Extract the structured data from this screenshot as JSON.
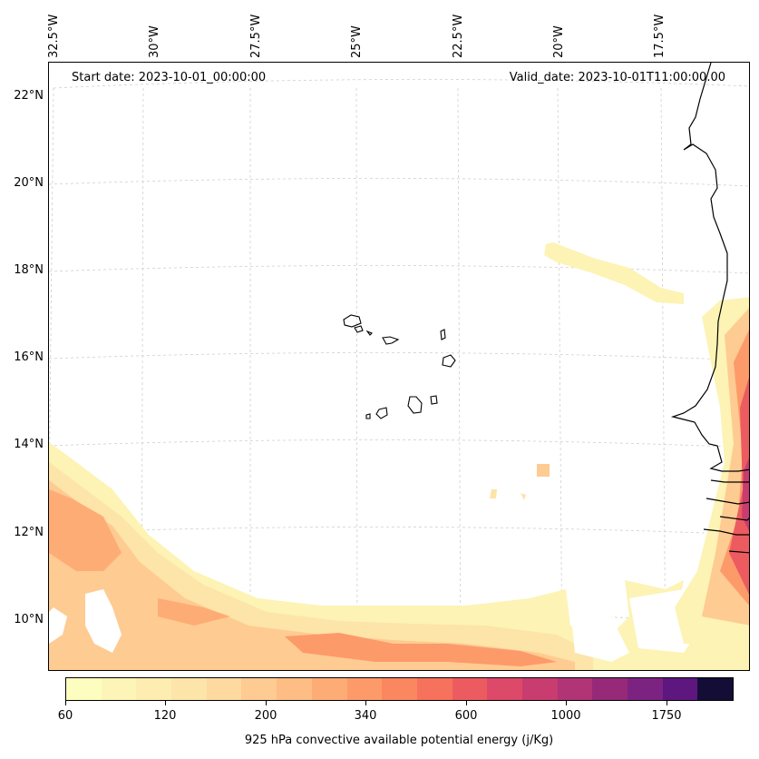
{
  "map": {
    "start_date_text": "Start date: 2023-10-01_00:00:00",
    "valid_date_text": "Valid_date: 2023-10-01T11:00:00.00",
    "lon_labels": [
      "32.5°W",
      "30°W",
      "27.5°W",
      "25°W",
      "22.5°W",
      "20°W",
      "17.5°W"
    ],
    "lat_labels": [
      "22°N",
      "20°N",
      "18°N",
      "16°N",
      "14°N",
      "12°N",
      "10°N"
    ],
    "gridlines": true,
    "coastline_color": "#000000"
  },
  "colorbar": {
    "title": "925 hPa convective available potential energy (j/Kg)",
    "tick_labels": [
      "60",
      "120",
      "200",
      "340",
      "600",
      "1000",
      "1750"
    ],
    "colors": [
      "#fcfdbf",
      "#fdf5b7",
      "#fdedb0",
      "#fde4a8",
      "#fed9a0",
      "#fecb92",
      "#febd84",
      "#feac76",
      "#fd9a6a",
      "#fb8760",
      "#f7725c",
      "#ec5b60",
      "#dd4968",
      "#c83c70",
      "#b13477",
      "#962a79",
      "#7c2382",
      "#5d177f",
      "#140e36"
    ]
  }
}
